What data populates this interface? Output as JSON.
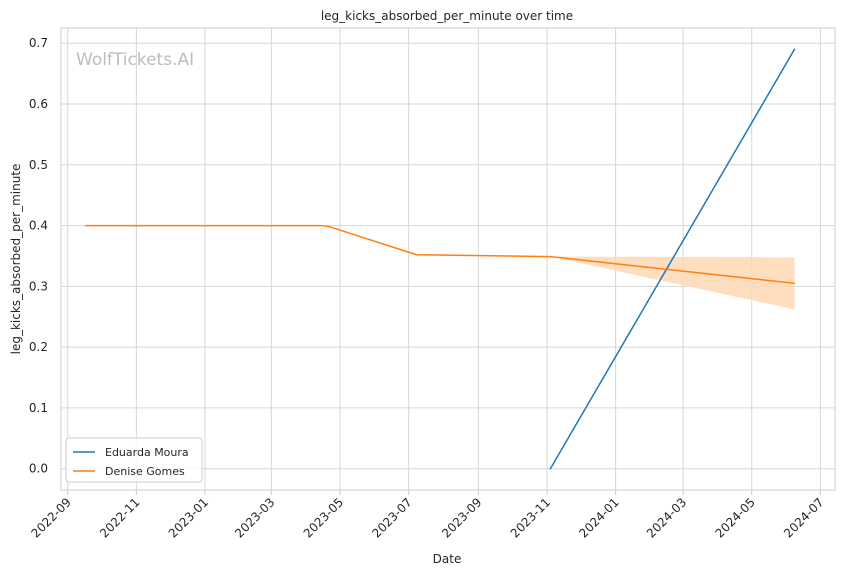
{
  "chart_data": {
    "type": "line",
    "title": "leg_kicks_absorbed_per_minute over time",
    "xlabel": "Date",
    "ylabel": "leg_kicks_absorbed_per_minute",
    "watermark": "WolfTickets.AI",
    "xlim": [
      "2022-08-26",
      "2024-07-14"
    ],
    "ylim": [
      -0.035,
      0.725
    ],
    "x_ticks": [
      "2022-09-01",
      "2022-11-01",
      "2023-01-01",
      "2023-03-01",
      "2023-05-01",
      "2023-07-01",
      "2023-09-01",
      "2023-11-01",
      "2024-01-01",
      "2024-03-01",
      "2024-05-01",
      "2024-07-01"
    ],
    "x_tick_labels": [
      "2022-09",
      "2022-11",
      "2023-01",
      "2023-03",
      "2023-05",
      "2023-07",
      "2023-09",
      "2023-11",
      "2024-01",
      "2024-03",
      "2024-05",
      "2024-07"
    ],
    "y_ticks": [
      0.0,
      0.1,
      0.2,
      0.3,
      0.4,
      0.5,
      0.6,
      0.7
    ],
    "y_tick_labels": [
      "0.0",
      "0.1",
      "0.2",
      "0.3",
      "0.4",
      "0.5",
      "0.6",
      "0.7"
    ],
    "grid": true,
    "legend_position": "lower-left",
    "series": [
      {
        "name": "Eduarda Moura",
        "color": "#1f77b4",
        "points": [
          {
            "x": "2023-11-04",
            "y": 0.0
          },
          {
            "x": "2024-06-08",
            "y": 0.69
          }
        ]
      },
      {
        "name": "Denise Gomes",
        "color": "#ff7f0e",
        "band_color": "#ffd8b5",
        "points": [
          {
            "x": "2022-09-17",
            "y": 0.4
          },
          {
            "x": "2023-04-15",
            "y": 0.4
          },
          {
            "x": "2023-04-22",
            "y": 0.398
          },
          {
            "x": "2023-07-08",
            "y": 0.352
          },
          {
            "x": "2023-11-04",
            "y": 0.349
          },
          {
            "x": "2024-06-08",
            "y": 0.305
          }
        ],
        "band": [
          {
            "x": "2023-11-04",
            "lower": 0.349,
            "upper": 0.349
          },
          {
            "x": "2024-06-08",
            "lower": 0.262,
            "upper": 0.348
          }
        ]
      }
    ]
  }
}
